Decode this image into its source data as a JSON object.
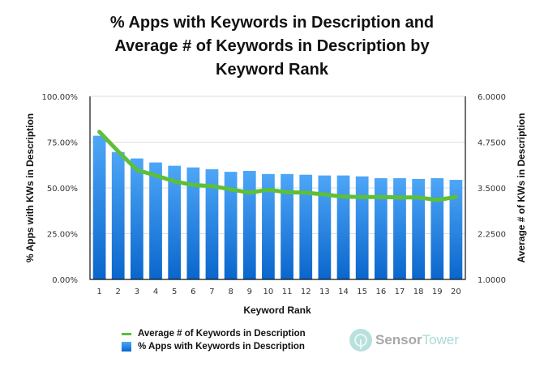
{
  "chart_data": {
    "type": "bar",
    "title": [
      "% Apps with Keywords in Description and",
      "Average # of Keywords in Description by",
      "Keyword Rank"
    ],
    "xlabel": "Keyword Rank",
    "ylabel": "% Apps with KWs in Description",
    "y2label": "Average # of KWs in Description",
    "categories": [
      "1",
      "2",
      "3",
      "4",
      "5",
      "6",
      "7",
      "8",
      "9",
      "10",
      "11",
      "12",
      "13",
      "14",
      "15",
      "16",
      "17",
      "18",
      "19",
      "20"
    ],
    "ylim": [
      0,
      100
    ],
    "y2lim": [
      1.0,
      6.0
    ],
    "yticks": [
      "0.00%",
      "25.00%",
      "50.00%",
      "75.00%",
      "100.00%"
    ],
    "ytick_values": [
      0,
      25,
      50,
      75,
      100
    ],
    "y2ticks": [
      "1.0000",
      "2.2500",
      "3.5000",
      "4.7500",
      "6.0000"
    ],
    "y2tick_values": [
      1.0,
      2.25,
      3.5,
      4.75,
      6.0
    ],
    "grid": true,
    "legend_position": "bottom-left",
    "series": [
      {
        "name": "% Apps with Keywords in Description",
        "type": "bar",
        "axis": "left",
        "color": "#1f7fe6",
        "values": [
          78.5,
          69.6,
          66.1,
          63.9,
          62.1,
          61.2,
          60.2,
          58.8,
          59.3,
          57.6,
          57.6,
          57.2,
          56.8,
          56.8,
          56.3,
          55.3,
          55.3,
          54.9,
          55.3,
          54.4
        ]
      },
      {
        "name": "Average # of Keywords in Description",
        "type": "line",
        "axis": "right",
        "color": "#5dbf3a",
        "values": [
          5.03,
          4.5,
          3.99,
          3.84,
          3.68,
          3.58,
          3.55,
          3.46,
          3.37,
          3.45,
          3.38,
          3.37,
          3.32,
          3.26,
          3.25,
          3.25,
          3.24,
          3.24,
          3.17,
          3.25
        ]
      }
    ]
  },
  "legend": {
    "line_label": "Average # of Keywords in Description",
    "bar_label": "% Apps with Keywords in Description"
  },
  "logo": {
    "part1": "Sensor",
    "part2": "Tower"
  }
}
